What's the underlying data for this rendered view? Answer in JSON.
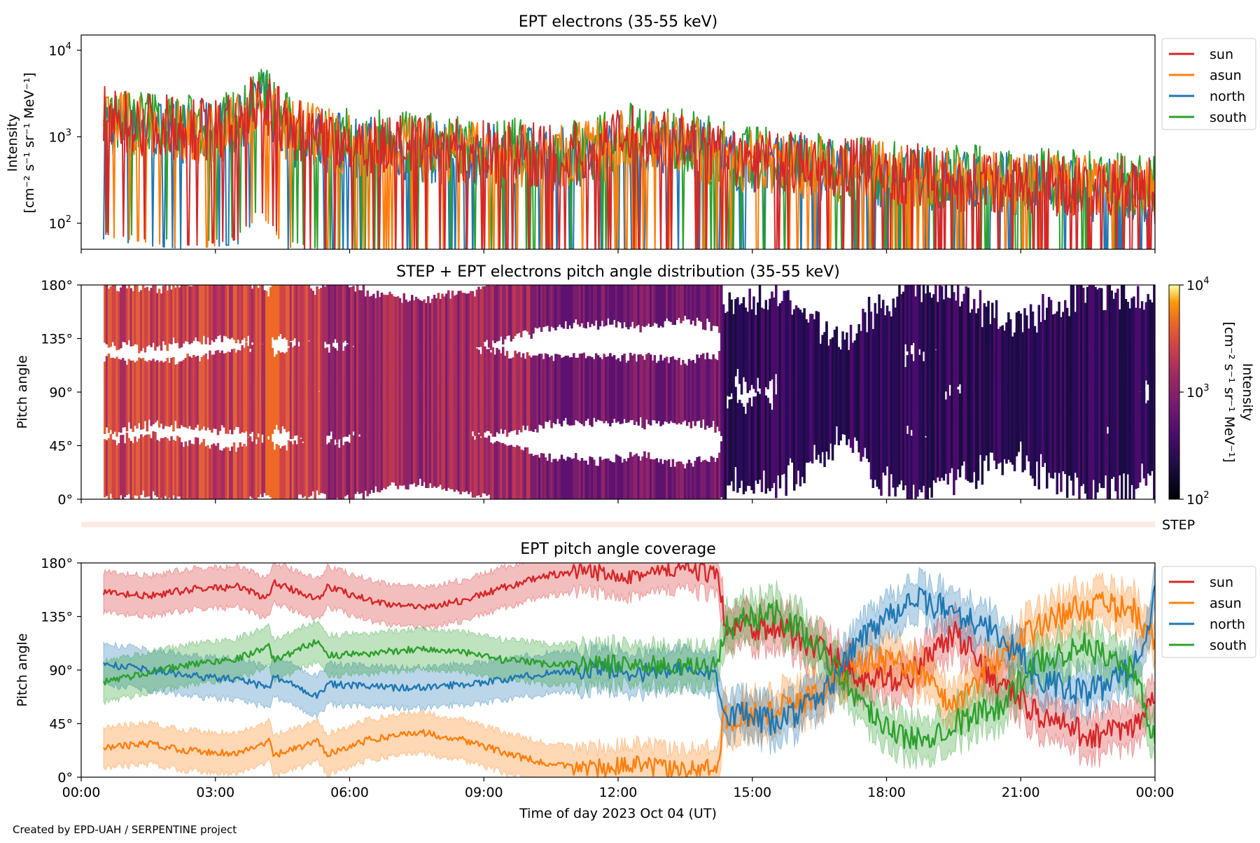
{
  "footer": "Created by EPD-UAH / SERPENTINE project",
  "xaxis": {
    "label": "Time of day 2023 Oct 04 (UT)",
    "ticks": [
      "00:00",
      "03:00",
      "06:00",
      "09:00",
      "12:00",
      "15:00",
      "18:00",
      "21:00",
      "00:00"
    ]
  },
  "colors": {
    "sun": "#d62728",
    "asun": "#ff7f0e",
    "north": "#1f77b4",
    "south": "#2ca02c"
  },
  "chart_data": [
    {
      "type": "line",
      "title": "EPT electrons (35-55 keV)",
      "ylabel": "Intensity",
      "yunit": "[cm⁻² s⁻¹ sr⁻¹ MeV⁻¹]",
      "yscale": "log",
      "ylim": [
        50,
        15000
      ],
      "xlim": [
        0,
        24
      ],
      "yticks": [
        {
          "base": "10",
          "exp": "2",
          "value": 100
        },
        {
          "base": "10",
          "exp": "3",
          "value": 1000
        },
        {
          "base": "10",
          "exp": "4",
          "value": 10000
        }
      ],
      "legend": "right",
      "series": [
        {
          "name": "sun",
          "color": "#d62728",
          "x": [
            0.5,
            1.5,
            2.5,
            3.5,
            4.0,
            4.5,
            5.5,
            6.5,
            7.5,
            8.5,
            9.5,
            10.5,
            11.5,
            12.5,
            13.5,
            14.5,
            15.5,
            16.5,
            17.5,
            18.5,
            19.5,
            20.5,
            21.5,
            22.5,
            23.5,
            24.0
          ],
          "y": [
            1500,
            1300,
            1100,
            1300,
            2800,
            1200,
            900,
            750,
            700,
            650,
            600,
            550,
            650,
            950,
            750,
            550,
            480,
            420,
            380,
            330,
            300,
            280,
            270,
            250,
            230,
            220
          ]
        },
        {
          "name": "asun",
          "color": "#ff7f0e",
          "x": [
            0.5,
            1.5,
            2.5,
            3.5,
            4.0,
            4.5,
            5.5,
            6.5,
            7.5,
            8.5,
            9.5,
            10.5,
            11.5,
            12.5,
            13.5,
            14.5,
            15.5,
            16.5,
            17.5,
            18.5,
            19.5,
            20.5,
            21.5,
            22.5,
            23.5,
            24.0
          ],
          "y": [
            1400,
            1200,
            1000,
            1200,
            2500,
            1100,
            850,
            700,
            650,
            600,
            560,
            520,
            600,
            900,
            700,
            520,
            450,
            400,
            360,
            320,
            290,
            270,
            260,
            240,
            220,
            200
          ]
        },
        {
          "name": "north",
          "color": "#1f77b4",
          "x": [
            0.5,
            1.5,
            2.5,
            3.5,
            4.0,
            4.5,
            5.5,
            6.5,
            7.5,
            8.5,
            9.5,
            10.5,
            11.5,
            12.5,
            13.5,
            14.5,
            15.5,
            16.5,
            17.5,
            18.5,
            19.5,
            20.5,
            21.5,
            22.5,
            23.5,
            24.0
          ],
          "y": [
            1300,
            1100,
            1000,
            1150,
            2400,
            1000,
            800,
            680,
            620,
            580,
            540,
            500,
            580,
            850,
            680,
            500,
            440,
            390,
            350,
            310,
            280,
            260,
            250,
            230,
            210,
            200
          ]
        },
        {
          "name": "south",
          "color": "#2ca02c",
          "x": [
            0.5,
            1.5,
            2.5,
            3.5,
            4.0,
            4.5,
            5.5,
            6.5,
            7.5,
            8.5,
            9.5,
            10.5,
            11.5,
            12.5,
            13.5,
            14.5,
            15.5,
            16.5,
            17.5,
            18.5,
            19.5,
            20.5,
            21.5,
            22.5,
            23.5,
            24.0
          ],
          "y": [
            1600,
            1400,
            1200,
            1400,
            3000,
            1300,
            950,
            800,
            750,
            700,
            650,
            600,
            700,
            1050,
            800,
            580,
            500,
            440,
            400,
            350,
            320,
            300,
            290,
            270,
            250,
            240
          ]
        }
      ]
    },
    {
      "type": "heatmap",
      "title": "STEP + EPT electrons pitch angle distribution (35-55 keV)",
      "ylabel": "Pitch angle",
      "yticks": [
        "0°",
        "45°",
        "90°",
        "135°",
        "180°"
      ],
      "ylim": [
        0,
        180
      ],
      "xlim": [
        0,
        24
      ],
      "colorbar": {
        "label": "Intensity",
        "unit": "[cm⁻² s⁻¹ sr⁻¹ MeV⁻¹]",
        "scale": "log",
        "range": [
          100,
          10000
        ],
        "ticks": [
          {
            "base": "10",
            "exp": "2"
          },
          {
            "base": "10",
            "exp": "3"
          },
          {
            "base": "10",
            "exp": "4"
          }
        ],
        "colormap": "inferno"
      }
    },
    {
      "type": "area",
      "step_label": "STEP",
      "title": "EPT pitch angle coverage",
      "ylabel": "Pitch angle",
      "yticks": [
        "0°",
        "45°",
        "90°",
        "135°",
        "180°"
      ],
      "ylim": [
        0,
        180
      ],
      "xlim": [
        0,
        24
      ],
      "legend": "right",
      "series": [
        {
          "name": "sun",
          "color": "#d62728",
          "x": [
            0.5,
            1.5,
            2.5,
            3.5,
            4.2,
            4.3,
            5.3,
            5.5,
            6.5,
            7.5,
            8.5,
            9.5,
            10.5,
            11.5,
            12.5,
            13.5,
            14.2,
            14.4,
            15.5,
            16.5,
            17.5,
            18.5,
            19.5,
            20.5,
            21.5,
            22.5,
            23.5,
            24.0
          ],
          "y": [
            155,
            152,
            158,
            160,
            150,
            163,
            150,
            160,
            148,
            142,
            148,
            160,
            170,
            172,
            170,
            175,
            170,
            130,
            125,
            110,
            80,
            85,
            120,
            80,
            50,
            35,
            40,
            65
          ]
        },
        {
          "name": "asun",
          "color": "#ff7f0e",
          "x": [
            0.5,
            1.5,
            2.5,
            3.5,
            4.2,
            4.3,
            5.3,
            5.5,
            6.5,
            7.5,
            8.5,
            9.5,
            10.5,
            11.5,
            12.5,
            13.5,
            14.2,
            14.4,
            15.5,
            16.5,
            17.5,
            18.5,
            19.5,
            20.5,
            21.5,
            22.5,
            23.5,
            24.0
          ],
          "y": [
            25,
            28,
            22,
            20,
            30,
            18,
            30,
            20,
            32,
            38,
            32,
            20,
            10,
            8,
            10,
            5,
            10,
            50,
            55,
            70,
            100,
            95,
            60,
            100,
            130,
            145,
            140,
            115
          ]
        },
        {
          "name": "north",
          "color": "#1f77b4",
          "x": [
            0.5,
            1.5,
            2.5,
            3.5,
            4.2,
            4.3,
            5.3,
            5.5,
            6.5,
            7.5,
            8.5,
            9.5,
            10.5,
            11.5,
            12.5,
            13.5,
            14.2,
            14.4,
            15.5,
            16.5,
            17.5,
            18.5,
            19.5,
            20.5,
            21.5,
            22.5,
            23.5,
            24.0
          ],
          "y": [
            95,
            90,
            85,
            82,
            75,
            85,
            68,
            78,
            76,
            75,
            78,
            82,
            88,
            90,
            88,
            90,
            85,
            55,
            45,
            65,
            120,
            150,
            140,
            120,
            80,
            70,
            90,
            150
          ]
        },
        {
          "name": "south",
          "color": "#2ca02c",
          "x": [
            0.5,
            1.5,
            2.5,
            3.5,
            4.2,
            4.3,
            5.3,
            5.5,
            6.5,
            7.5,
            8.5,
            9.5,
            10.5,
            11.5,
            12.5,
            13.5,
            14.2,
            14.4,
            15.5,
            16.5,
            17.5,
            18.5,
            19.5,
            20.5,
            21.5,
            22.5,
            23.5,
            24.0
          ],
          "y": [
            80,
            88,
            95,
            100,
            110,
            98,
            115,
            102,
            104,
            108,
            105,
            98,
            95,
            95,
            95,
            92,
            95,
            125,
            140,
            110,
            60,
            30,
            45,
            60,
            100,
            110,
            90,
            30
          ]
        }
      ]
    }
  ]
}
